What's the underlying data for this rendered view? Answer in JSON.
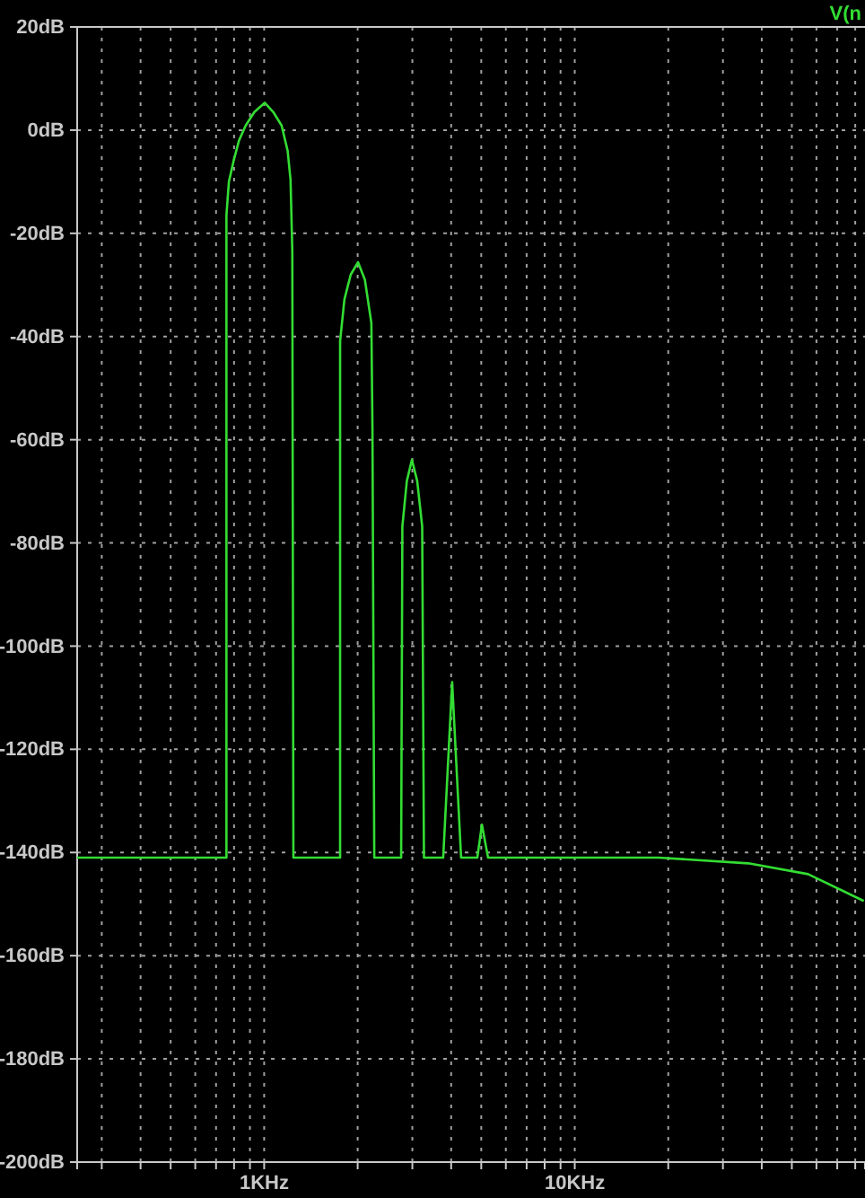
{
  "chart_data": {
    "type": "line",
    "log": "x",
    "grid": true,
    "legend": "top right",
    "line_style": "solid",
    "marker": "none",
    "xlim": [
      0.25,
      86
    ],
    "ylim": [
      -200,
      20
    ],
    "xticks": [
      {
        "value": 0.3,
        "label": null
      },
      {
        "value": 0.4,
        "label": null
      },
      {
        "value": 0.5,
        "label": null
      },
      {
        "value": 0.6,
        "label": null
      },
      {
        "value": 0.7,
        "label": null
      },
      {
        "value": 0.8,
        "label": null
      },
      {
        "value": 0.9,
        "label": null
      },
      {
        "value": 1,
        "label": "1KHz"
      },
      {
        "value": 2,
        "label": null
      },
      {
        "value": 3,
        "label": null
      },
      {
        "value": 4,
        "label": null
      },
      {
        "value": 5,
        "label": null
      },
      {
        "value": 6,
        "label": null
      },
      {
        "value": 7,
        "label": null
      },
      {
        "value": 8,
        "label": null
      },
      {
        "value": 9,
        "label": null
      },
      {
        "value": 10,
        "label": "10KHz"
      },
      {
        "value": 20,
        "label": null
      },
      {
        "value": 30,
        "label": null
      },
      {
        "value": 40,
        "label": null
      },
      {
        "value": 50,
        "label": null
      },
      {
        "value": 60,
        "label": null
      },
      {
        "value": 70,
        "label": null
      },
      {
        "value": 80,
        "label": null
      }
    ],
    "yticks": [
      {
        "value": 20,
        "label": "20dB"
      },
      {
        "value": 0,
        "label": "0dB"
      },
      {
        "value": -20,
        "label": "-20dB"
      },
      {
        "value": -40,
        "label": "-40dB"
      },
      {
        "value": -60,
        "label": "-60dB"
      },
      {
        "value": -80,
        "label": "-80dB"
      },
      {
        "value": -100,
        "label": "-100dB"
      },
      {
        "value": -120,
        "label": "-120dB"
      },
      {
        "value": -140,
        "label": "-140dB"
      },
      {
        "value": -160,
        "label": "-160dB"
      },
      {
        "value": -180,
        "label": "-180dB"
      },
      {
        "value": -200,
        "label": "-200dB"
      }
    ],
    "series": [
      {
        "name": "V(n",
        "color": "#33dd33",
        "x": [
          0.25,
          0.756,
          0.756,
          0.77,
          0.797,
          0.83,
          0.872,
          0.93,
          1.004,
          1.07,
          1.138,
          1.19,
          1.216,
          1.232,
          1.242,
          1.756,
          1.756,
          1.813,
          1.9,
          2.006,
          2.11,
          2.214,
          2.232,
          2.262,
          2.761,
          2.786,
          2.88,
          2.99,
          3.11,
          3.227,
          3.27,
          3.771,
          4.03,
          4.306,
          4.856,
          5.025,
          5.258,
          18.62,
          36.22,
          56.4,
          85.22
        ],
        "values": [
          -141,
          -141,
          -16.5,
          -10,
          -6,
          -2,
          0.9,
          3.5,
          5.3,
          3.5,
          0.9,
          -4,
          -9.6,
          -23.5,
          -141,
          -141,
          -40.9,
          -32.8,
          -28,
          -25.6,
          -29,
          -37.4,
          -58,
          -141,
          -141,
          -76.8,
          -68,
          -63.9,
          -68,
          -76.8,
          -141,
          -141,
          -107,
          -141,
          -141,
          -134.6,
          -141,
          -141,
          -142.1,
          -144.2,
          -149.4
        ]
      }
    ]
  }
}
